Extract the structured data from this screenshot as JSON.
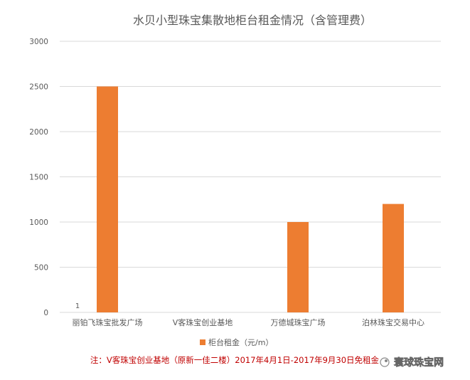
{
  "chart_data": {
    "type": "bar",
    "title": "水贝小型珠宝集散地柜台租金情况（含管理费）",
    "categories": [
      "丽铂飞珠宝批发广场",
      "V客珠宝创业基地",
      "万德城珠宝广场",
      "泊林珠宝交易中心"
    ],
    "series": [
      {
        "name": "柜台租金（元/m）",
        "values": [
          2500,
          0,
          1000,
          1200
        ],
        "color": "#ED7D31"
      }
    ],
    "ylim": [
      0,
      3000
    ],
    "yticks": [
      0,
      500,
      1000,
      1500,
      2000,
      2500,
      3000
    ],
    "annotations": [
      {
        "text": "1",
        "category": "丽铂飞珠宝批发广场"
      }
    ],
    "grid": true,
    "legend": "bottom-center"
  },
  "footnote": "注：V客珠宝创业基地（原新一佳二楼）2017年4月1日-2017年9月30日免租金",
  "watermark": "寰球珠宝网",
  "colors": {
    "bar": "#ED7D31",
    "grid": "#D9D9D9",
    "axis_text": "#595959",
    "title_text": "#595959",
    "footnote": "#C00000"
  }
}
